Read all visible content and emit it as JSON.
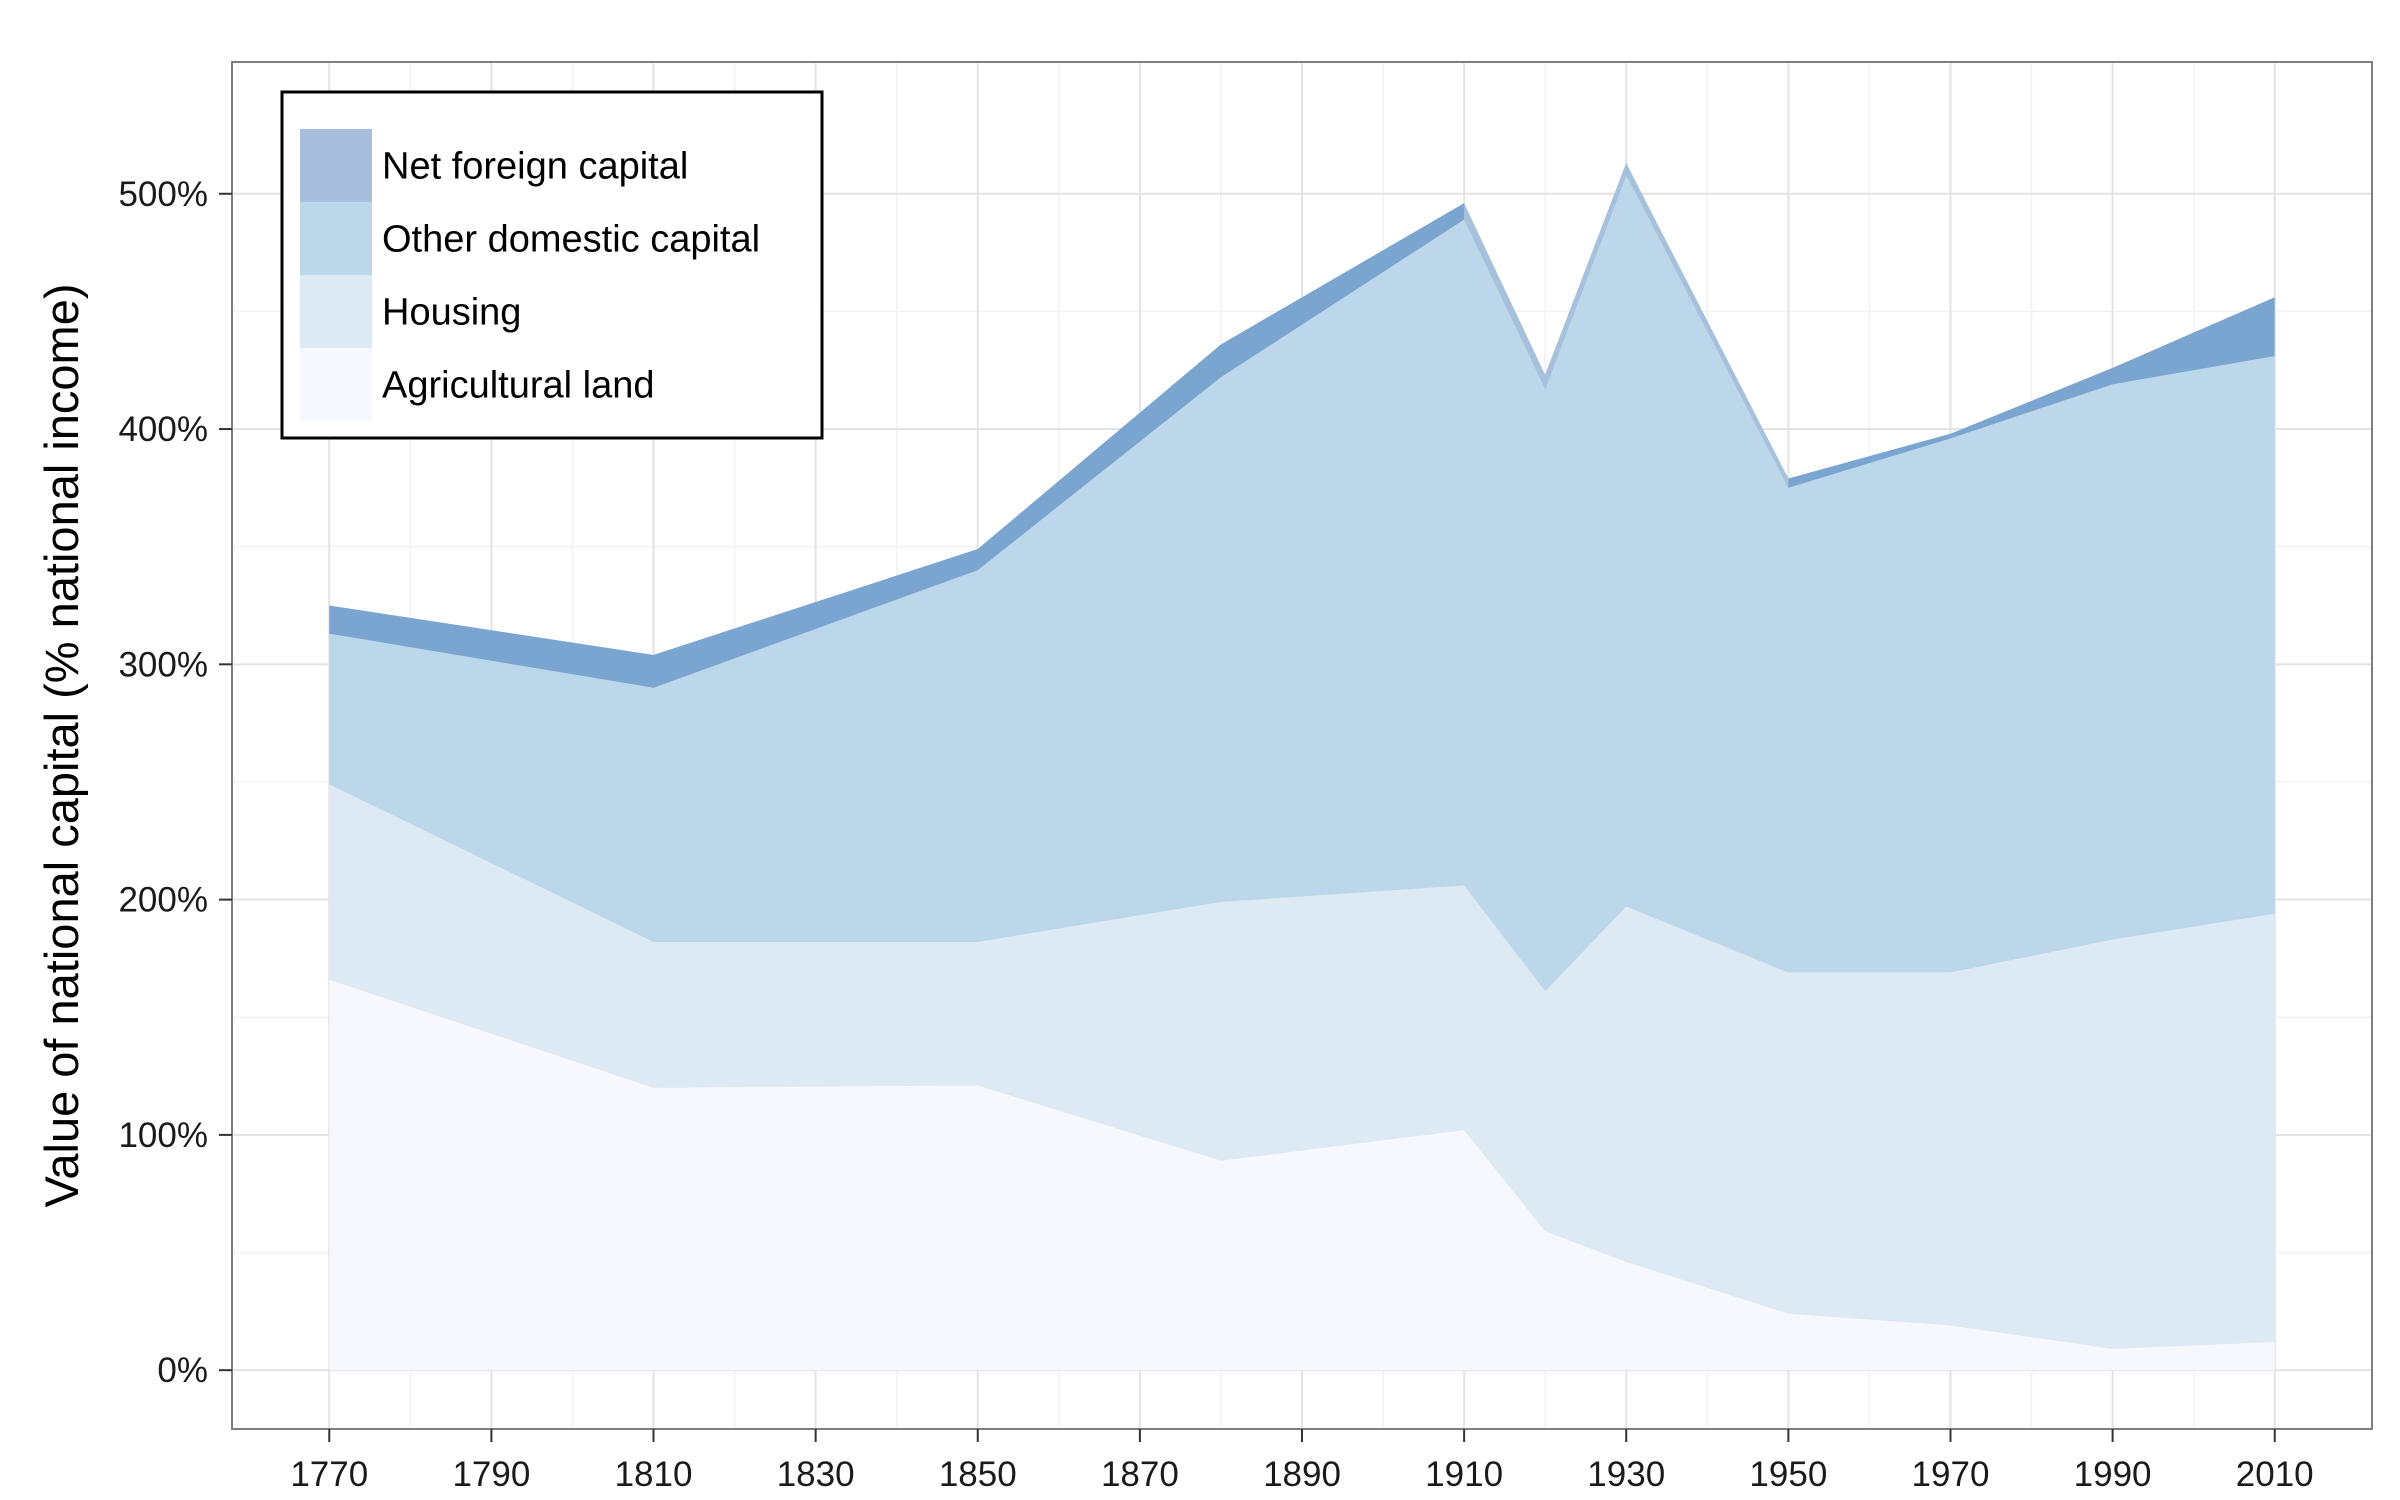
{
  "chart_data": {
    "type": "area",
    "stacked": true,
    "ylabel": "Value of national capital (% national income)",
    "xlabel": "",
    "x": [
      1770,
      1810,
      1850,
      1880,
      1910,
      1920,
      1930,
      1950,
      1970,
      1990,
      2010
    ],
    "xticks": [
      "1770",
      "1790",
      "1810",
      "1830",
      "1850",
      "1870",
      "1890",
      "1910",
      "1930",
      "1950",
      "1970",
      "1990",
      "2010"
    ],
    "xtick_values": [
      1770,
      1790,
      1810,
      1830,
      1850,
      1870,
      1890,
      1910,
      1930,
      1950,
      1970,
      1990,
      2010
    ],
    "yticks": [
      "0%",
      "100%",
      "200%",
      "300%",
      "400%",
      "500%"
    ],
    "ytick_values": [
      0,
      100,
      200,
      300,
      400,
      500
    ],
    "xlim": [
      1758,
      2022
    ],
    "ylim": [
      -25,
      556
    ],
    "grid": true,
    "legend_position": "top-left",
    "legend_order": [
      "Net foreign capital",
      "Other domestic capital",
      "Housing",
      "Agricultural land"
    ],
    "series": [
      {
        "name": "Agricultural land",
        "color": "#f7f8fd",
        "values": [
          166,
          120,
          121,
          89,
          102,
          59,
          46,
          24,
          19,
          9,
          12
        ]
      },
      {
        "name": "Housing",
        "color": "#dde9f3",
        "values": [
          83,
          62,
          61,
          110,
          104,
          102,
          151,
          145,
          150,
          174,
          182
        ]
      },
      {
        "name": "Other domestic capital",
        "color": "#bcd6ea",
        "values": [
          64,
          108,
          158,
          223,
          283,
          262,
          316,
          206,
          227,
          236,
          237
        ]
      },
      {
        "name": "Net foreign capital",
        "color": "#7aa5d1",
        "legend_color": "#a7bedd",
        "values": [
          12,
          14,
          9,
          14,
          7,
          -6,
          -5,
          4,
          2,
          7,
          25
        ]
      }
    ],
    "negative_net_foreign_color": "#a7c1dd"
  }
}
